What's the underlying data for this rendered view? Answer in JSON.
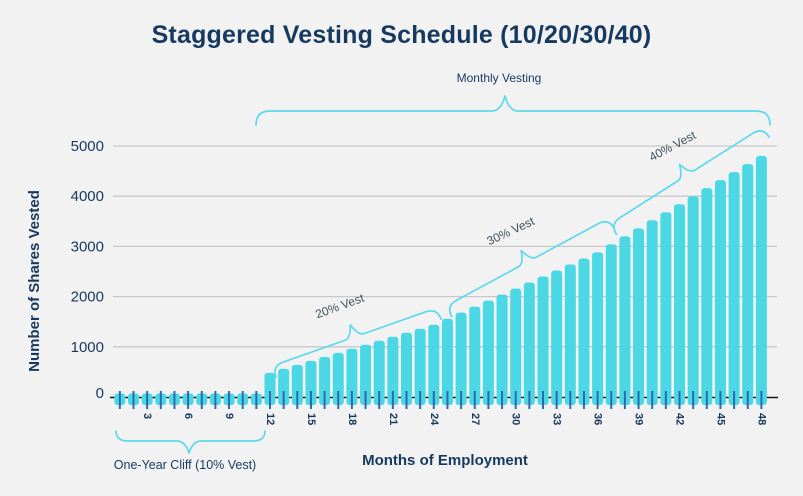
{
  "colors": {
    "background": "#f2f2f3",
    "bar": "#4cd7e4",
    "brace": "#5cdaec",
    "navy": "#16395f",
    "tick_mark": "#2b69b2",
    "gridline": "#c8c8c8",
    "axis_line": "#141414",
    "segment_label": "#3f525c"
  },
  "chart_data": {
    "type": "bar",
    "title": "Staggered Vesting Schedule (10/20/30/40)",
    "xlabel": "Months of Employment",
    "ylabel": "Number of Shares Vested",
    "x": [
      1,
      2,
      3,
      4,
      5,
      6,
      7,
      8,
      9,
      10,
      11,
      12,
      13,
      14,
      15,
      16,
      17,
      18,
      19,
      20,
      21,
      22,
      23,
      24,
      25,
      26,
      27,
      28,
      29,
      30,
      31,
      32,
      33,
      34,
      35,
      36,
      37,
      38,
      39,
      40,
      41,
      42,
      43,
      44,
      45,
      46,
      47,
      48
    ],
    "values": [
      0,
      0,
      0,
      0,
      0,
      0,
      0,
      0,
      0,
      0,
      0,
      480,
      560,
      640,
      720,
      800,
      880,
      960,
      1040,
      1120,
      1200,
      1280,
      1360,
      1440,
      1560,
      1680,
      1800,
      1920,
      2040,
      2160,
      2280,
      2400,
      2520,
      2640,
      2760,
      2880,
      3040,
      3200,
      3360,
      3520,
      3680,
      3840,
      4000,
      4160,
      4320,
      4480,
      4640,
      4800
    ],
    "total_shares": 4800,
    "x_tick_step": 3,
    "y_ticks": [
      0,
      1000,
      2000,
      3000,
      4000,
      5000
    ],
    "ylim": [
      0,
      5150
    ],
    "grid": true,
    "legend": "none",
    "annotations": [
      {
        "text": "Monthly Vesting",
        "months": "12-48"
      },
      {
        "text": "One-Year Cliff (10% Vest)",
        "months": "1-12"
      },
      {
        "text": "20% Vest",
        "months": "13-24"
      },
      {
        "text": "30% Vest",
        "months": "25-36"
      },
      {
        "text": "40% Vest",
        "months": "37-48"
      }
    ]
  }
}
